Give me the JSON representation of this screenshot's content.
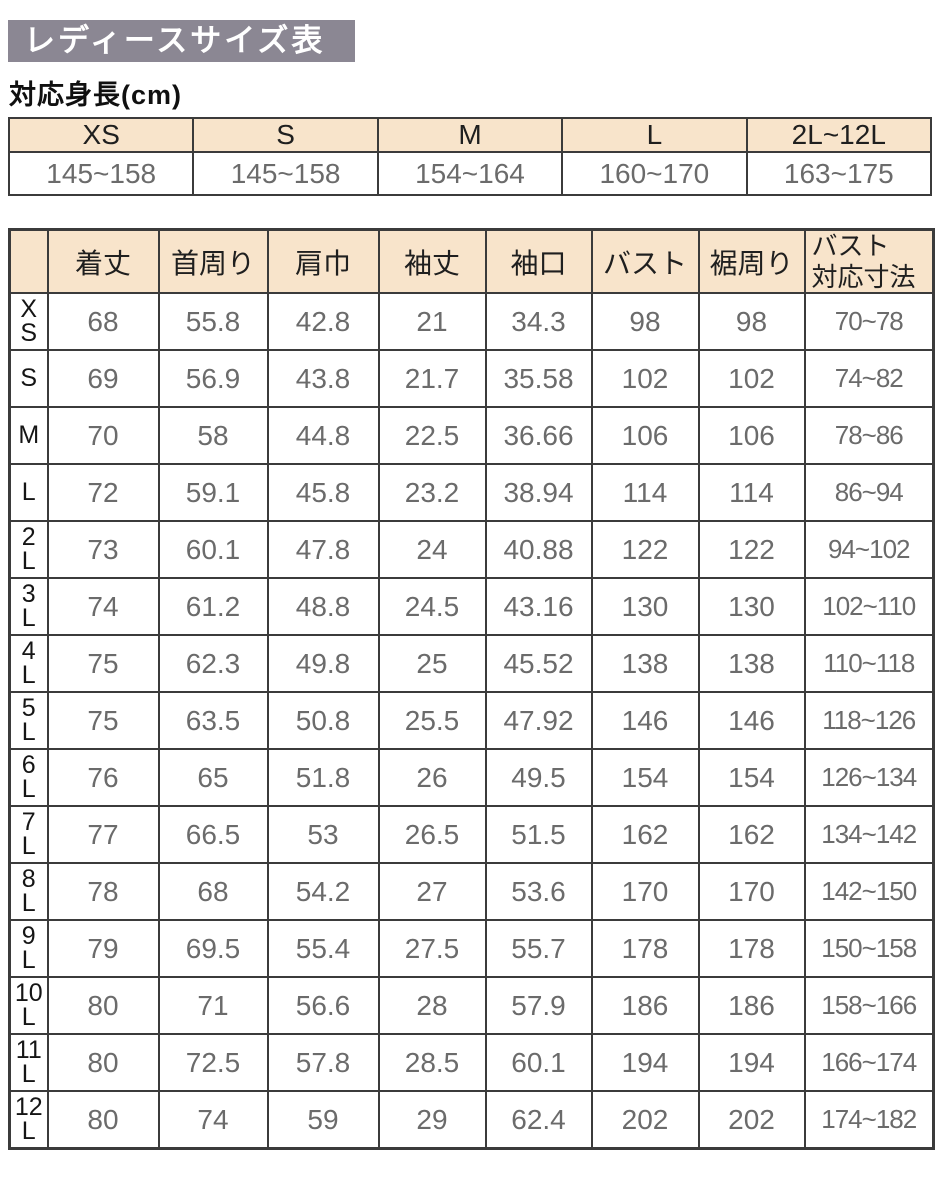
{
  "page": {
    "title": "レディースサイズ表",
    "subtitle": "対応身長(cm)"
  },
  "colors": {
    "title_bg": "#8b8793",
    "header_bg": "#f8e4cb",
    "border": "#3b3b3b",
    "text_dark": "#1f1f1f",
    "text_gray": "#6b6b6b"
  },
  "height_table": {
    "columns": [
      "XS",
      "S",
      "M",
      "L",
      "2L~12L"
    ],
    "values": [
      "145~158",
      "145~158",
      "154~164",
      "160~170",
      "163~175"
    ]
  },
  "size_table": {
    "corner_label": "",
    "columns": [
      "着丈",
      "首周り",
      "肩巾",
      "袖丈",
      "袖口",
      "バスト",
      "裾周り",
      "バスト\n対応寸法"
    ],
    "rows": [
      {
        "size": "X\nS",
        "size_flat": "XS",
        "values": [
          "68",
          "55.8",
          "42.8",
          "21",
          "34.3",
          "98",
          "98",
          "70~78"
        ]
      },
      {
        "size": "S",
        "size_flat": "S",
        "values": [
          "69",
          "56.9",
          "43.8",
          "21.7",
          "35.58",
          "102",
          "102",
          "74~82"
        ]
      },
      {
        "size": "M",
        "size_flat": "M",
        "values": [
          "70",
          "58",
          "44.8",
          "22.5",
          "36.66",
          "106",
          "106",
          "78~86"
        ]
      },
      {
        "size": "L",
        "size_flat": "L",
        "values": [
          "72",
          "59.1",
          "45.8",
          "23.2",
          "38.94",
          "114",
          "114",
          "86~94"
        ]
      },
      {
        "size": "2\nL",
        "size_flat": "2L",
        "values": [
          "73",
          "60.1",
          "47.8",
          "24",
          "40.88",
          "122",
          "122",
          "94~102"
        ]
      },
      {
        "size": "3\nL",
        "size_flat": "3L",
        "values": [
          "74",
          "61.2",
          "48.8",
          "24.5",
          "43.16",
          "130",
          "130",
          "102~110"
        ]
      },
      {
        "size": "4\nL",
        "size_flat": "4L",
        "values": [
          "75",
          "62.3",
          "49.8",
          "25",
          "45.52",
          "138",
          "138",
          "110~118"
        ]
      },
      {
        "size": "5\nL",
        "size_flat": "5L",
        "values": [
          "75",
          "63.5",
          "50.8",
          "25.5",
          "47.92",
          "146",
          "146",
          "118~126"
        ]
      },
      {
        "size": "6\nL",
        "size_flat": "6L",
        "values": [
          "76",
          "65",
          "51.8",
          "26",
          "49.5",
          "154",
          "154",
          "126~134"
        ]
      },
      {
        "size": "7\nL",
        "size_flat": "7L",
        "values": [
          "77",
          "66.5",
          "53",
          "26.5",
          "51.5",
          "162",
          "162",
          "134~142"
        ]
      },
      {
        "size": "8\nL",
        "size_flat": "8L",
        "values": [
          "78",
          "68",
          "54.2",
          "27",
          "53.6",
          "170",
          "170",
          "142~150"
        ]
      },
      {
        "size": "9\nL",
        "size_flat": "9L",
        "values": [
          "79",
          "69.5",
          "55.4",
          "27.5",
          "55.7",
          "178",
          "178",
          "150~158"
        ]
      },
      {
        "size": "10\nL",
        "size_flat": "10L",
        "values": [
          "80",
          "71",
          "56.6",
          "28",
          "57.9",
          "186",
          "186",
          "158~166"
        ]
      },
      {
        "size": "11\nL",
        "size_flat": "11L",
        "values": [
          "80",
          "72.5",
          "57.8",
          "28.5",
          "60.1",
          "194",
          "194",
          "166~174"
        ]
      },
      {
        "size": "12\nL",
        "size_flat": "12L",
        "values": [
          "80",
          "74",
          "59",
          "29",
          "62.4",
          "202",
          "202",
          "174~182"
        ]
      }
    ]
  }
}
